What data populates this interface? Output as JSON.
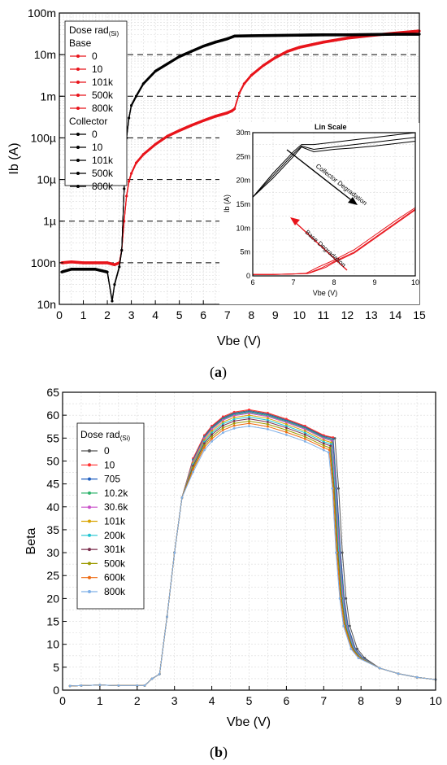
{
  "panel_a": {
    "label": "a",
    "chart_data": {
      "type": "line",
      "xlabel": "Vbe (V)",
      "ylabel": "Ib (A)",
      "xlim": [
        0,
        15
      ],
      "ylim": [
        1e-08,
        0.1
      ],
      "yscale": "log",
      "x_ticks": [
        "0",
        "1",
        "2",
        "3",
        "4",
        "5",
        "6",
        "7",
        "8",
        "9",
        "10",
        "11",
        "12",
        "13",
        "14",
        "15"
      ],
      "y_ticks": [
        "10n",
        "100n",
        "1µ",
        "10µ",
        "100µ",
        "1m",
        "10m",
        "100m"
      ],
      "y_tick_values": [
        1e-08,
        1e-07,
        1e-06,
        1e-05,
        0.0001,
        0.001,
        0.01,
        0.1
      ],
      "grid": true,
      "legend_position": "top-left",
      "legend": {
        "title": "Dose rad",
        "title_sub": "(Si)",
        "groups": [
          {
            "name": "Base",
            "color": "#e8141b",
            "entries": [
              "0",
              "10",
              "101k",
              "500k",
              "800k"
            ]
          },
          {
            "name": "Collector",
            "color": "#000000",
            "entries": [
              "0",
              "10",
              "101k",
              "500k",
              "800k"
            ]
          }
        ]
      },
      "series": [
        {
          "group": "Base",
          "color": "#e8141b",
          "x": [
            0.1,
            0.5,
            1,
            1.5,
            2,
            2.3,
            2.5,
            2.6,
            2.7,
            2.8,
            2.9,
            3.0,
            3.2,
            3.5,
            4,
            4.5,
            5,
            5.5,
            6,
            6.5,
            7,
            7.2,
            7.3,
            7.5,
            7.7,
            8,
            8.5,
            9,
            9.5,
            10,
            11,
            12,
            13,
            14,
            15
          ],
          "y": [
            1e-07,
            1.05e-07,
            1e-07,
            1e-07,
            1e-07,
            9e-08,
            1e-07,
            2e-07,
            1e-06,
            4e-06,
            9e-06,
            1.4e-05,
            2.5e-05,
            4e-05,
            7e-05,
            0.00011,
            0.00015,
            0.0002,
            0.00026,
            0.00033,
            0.0004,
            0.00045,
            0.0005,
            0.0012,
            0.002,
            0.0032,
            0.0055,
            0.0085,
            0.012,
            0.015,
            0.02,
            0.025,
            0.029,
            0.033,
            0.037
          ]
        },
        {
          "group": "Collector",
          "color": "#000000",
          "x": [
            0.1,
            0.5,
            1,
            1.5,
            2,
            2.2,
            2.3,
            2.5,
            2.6,
            2.7,
            2.8,
            2.9,
            3.0,
            3.2,
            3.5,
            4,
            4.5,
            5,
            5.5,
            6,
            6.5,
            7,
            7.3,
            8,
            9,
            10,
            11,
            12,
            13,
            14,
            15
          ],
          "y": [
            6e-08,
            7e-08,
            7e-08,
            7e-08,
            6e-08,
            1.2e-08,
            3e-08,
            8e-08,
            2e-07,
            6e-06,
            0.0001,
            0.0003,
            0.0006,
            0.001,
            0.002,
            0.004,
            0.006,
            0.009,
            0.012,
            0.016,
            0.02,
            0.024,
            0.028,
            0.0285,
            0.029,
            0.0295,
            0.03,
            0.03,
            0.0305,
            0.031,
            0.031
          ]
        }
      ],
      "inset": {
        "title": "Lin Scale",
        "xlabel": "Vbe (V)",
        "ylabel": "Ib (A)",
        "xlim": [
          6,
          10
        ],
        "ylim": [
          0,
          0.03
        ],
        "x_ticks": [
          "6",
          "7",
          "8",
          "9",
          "10"
        ],
        "y_ticks": [
          "0",
          "5m",
          "10m",
          "15m",
          "20m",
          "25m",
          "30m"
        ],
        "annotations": [
          {
            "text": "Collector Degradation",
            "color": "#000000"
          },
          {
            "text": "Base Degradation",
            "color": "#e8141b"
          }
        ],
        "series": [
          {
            "group": "Collector",
            "color": "#000000",
            "x": [
              6,
              6.5,
              7,
              7.2,
              7.5,
              8,
              8.5,
              9,
              9.5,
              10
            ],
            "y": [
              0.0165,
              0.0215,
              0.026,
              0.0275,
              0.0275,
              0.028,
              0.0285,
              0.029,
              0.0295,
              0.03
            ]
          },
          {
            "group": "Collector",
            "color": "#000000",
            "x": [
              6,
              6.5,
              7,
              7.2,
              7.5,
              8,
              8.5,
              9,
              9.5,
              10
            ],
            "y": [
              0.0165,
              0.021,
              0.0255,
              0.0272,
              0.0265,
              0.027,
              0.0275,
              0.028,
              0.0285,
              0.029
            ]
          },
          {
            "group": "Collector",
            "color": "#000000",
            "x": [
              6,
              6.5,
              7,
              7.2,
              7.5,
              8,
              8.5,
              9,
              9.5,
              10
            ],
            "y": [
              0.0165,
              0.0205,
              0.025,
              0.027,
              0.026,
              0.0265,
              0.0268,
              0.0272,
              0.0277,
              0.0282
            ]
          },
          {
            "group": "Base",
            "color": "#e8141b",
            "x": [
              6,
              6.5,
              7,
              7.3,
              7.6,
              8,
              8.5,
              9,
              9.5,
              10
            ],
            "y": [
              0.0003,
              0.0003,
              0.0004,
              0.0005,
              0.0018,
              0.0033,
              0.0055,
              0.0085,
              0.0115,
              0.0143
            ]
          },
          {
            "group": "Base",
            "color": "#e8141b",
            "x": [
              6,
              6.5,
              7,
              7.35,
              7.7,
              8,
              8.5,
              9,
              9.5,
              10
            ],
            "y": [
              0.0003,
              0.0003,
              0.0004,
              0.0005,
              0.0017,
              0.003,
              0.005,
              0.008,
              0.011,
              0.014
            ]
          },
          {
            "group": "Base",
            "color": "#e8141b",
            "x": [
              6,
              6.5,
              7,
              7.4,
              7.8,
              8,
              8.5,
              9,
              9.5,
              10
            ],
            "y": [
              0.0003,
              0.0003,
              0.0004,
              0.0006,
              0.0018,
              0.0028,
              0.0048,
              0.0078,
              0.0108,
              0.0138
            ]
          }
        ]
      }
    }
  },
  "panel_b": {
    "label": "b",
    "chart_data": {
      "type": "line",
      "xlabel": "Vbe (V)",
      "ylabel": "Beta",
      "xlim": [
        0,
        10
      ],
      "ylim": [
        0,
        65
      ],
      "x_ticks": [
        "0",
        "1",
        "2",
        "3",
        "4",
        "5",
        "6",
        "7",
        "8",
        "9",
        "10"
      ],
      "y_ticks": [
        "0",
        "5",
        "10",
        "15",
        "20",
        "25",
        "30",
        "35",
        "40",
        "45",
        "50",
        "55",
        "60",
        "65"
      ],
      "grid": true,
      "legend_position": "left",
      "legend": {
        "title": "Dose rad",
        "title_sub": "(Si)"
      },
      "x": [
        0.2,
        0.5,
        1.0,
        1.5,
        2.0,
        2.2,
        2.4,
        2.6,
        2.8,
        3.0,
        3.2,
        3.5,
        3.8,
        4.0,
        4.3,
        4.6,
        5.0,
        5.5,
        6.0,
        6.5,
        7.0,
        7.2,
        7.3,
        7.4,
        7.5,
        7.6,
        7.8,
        8.0,
        8.5,
        9.0,
        9.5,
        10.0
      ],
      "series": [
        {
          "name": "0",
          "color": "#555555",
          "peak": 61.0,
          "knee": 55.0,
          "x_offset": 0.1
        },
        {
          "name": "10",
          "color": "#ff3030",
          "peak": 61.2,
          "knee": 55.0,
          "x_offset": 0.05
        },
        {
          "name": "705",
          "color": "#1f5fbf",
          "peak": 60.8,
          "knee": 54.8,
          "x_offset": 0.05
        },
        {
          "name": "10.2k",
          "color": "#2db36b",
          "peak": 60.6,
          "knee": 54.5,
          "x_offset": 0.03
        },
        {
          "name": "30.6k",
          "color": "#c94fc9",
          "peak": 60.4,
          "knee": 54.3,
          "x_offset": 0.02
        },
        {
          "name": "101k",
          "color": "#d9a300",
          "peak": 60.0,
          "knee": 54.0,
          "x_offset": 0.0
        },
        {
          "name": "200k",
          "color": "#20c4d0",
          "peak": 59.6,
          "knee": 53.6,
          "x_offset": 0.0
        },
        {
          "name": "301k",
          "color": "#7a2e4d",
          "peak": 59.2,
          "knee": 53.2,
          "x_offset": -0.02
        },
        {
          "name": "500k",
          "color": "#9c9a00",
          "peak": 58.7,
          "knee": 52.8,
          "x_offset": -0.03
        },
        {
          "name": "600k",
          "color": "#ee6a10",
          "peak": 58.2,
          "knee": 52.4,
          "x_offset": -0.05
        },
        {
          "name": "800k",
          "color": "#7fb0e8",
          "peak": 57.6,
          "knee": 51.8,
          "x_offset": -0.07
        }
      ]
    }
  }
}
